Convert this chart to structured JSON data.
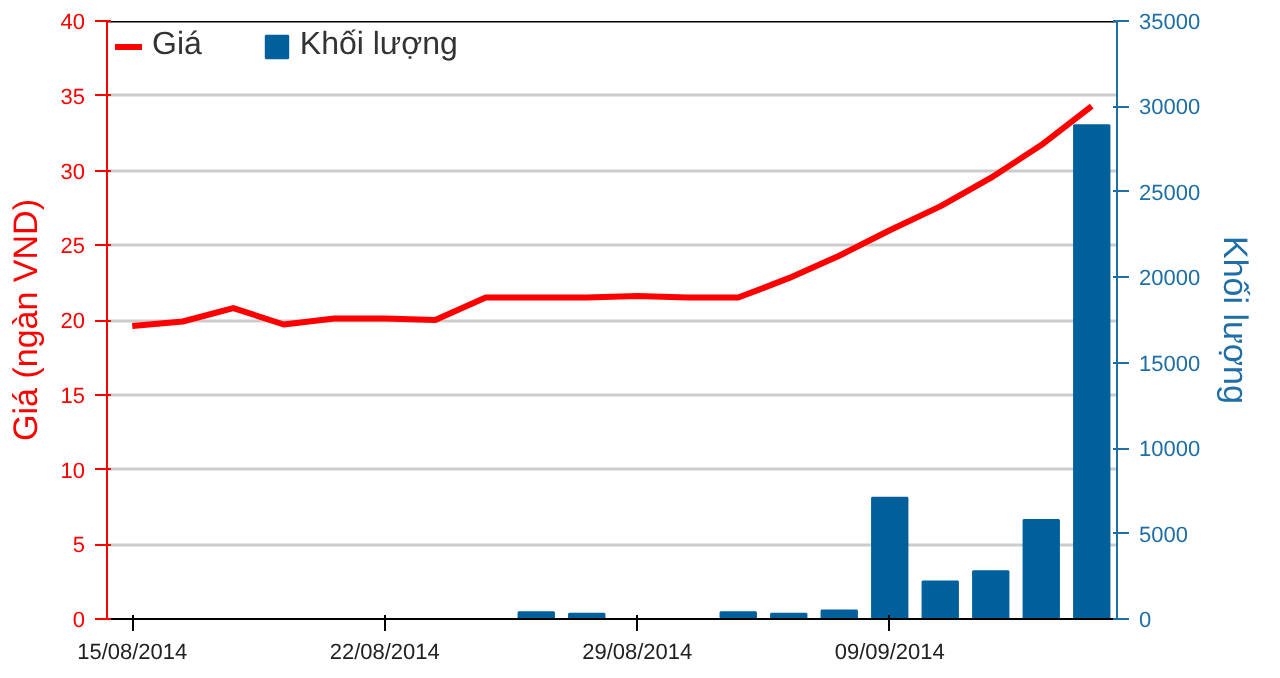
{
  "chart_data": {
    "type": "line",
    "ylabel": "Giá (ngàn VND)",
    "y2label": "Khối lượng",
    "categories": [
      "15/08/2014",
      null,
      null,
      null,
      null,
      "22/08/2014",
      null,
      null,
      null,
      null,
      "29/08/2014",
      null,
      null,
      null,
      null,
      "09/09/2014",
      null,
      null,
      null,
      null
    ],
    "series": [
      {
        "name": "Giá",
        "color": "#ff0000",
        "values": [
          19.6,
          19.9,
          20.8,
          19.7,
          20.1,
          20.1,
          20.0,
          21.5,
          21.5,
          21.5,
          21.6,
          21.5,
          21.5,
          22.8,
          24.3,
          26.0,
          27.6,
          29.5,
          31.7,
          34.3
        ]
      },
      {
        "name": "Khối lượng",
        "type": "bar",
        "axis": "y2",
        "color": "#00609c",
        "values": [
          0,
          0,
          0,
          0,
          0,
          0,
          0,
          0,
          400,
          300,
          0,
          0,
          400,
          300,
          500,
          7100,
          2200,
          2800,
          5800,
          28900
        ]
      }
    ],
    "ylim": [
      0,
      40
    ],
    "yticks": [
      0,
      5,
      10,
      15,
      20,
      25,
      30,
      35,
      40
    ],
    "y2lim": [
      0,
      35000
    ],
    "y2ticks": [
      0,
      5000,
      10000,
      15000,
      20000,
      25000,
      30000,
      35000
    ],
    "grid": "y",
    "legend": "top left",
    "marker": "none",
    "line_style": "solid"
  }
}
